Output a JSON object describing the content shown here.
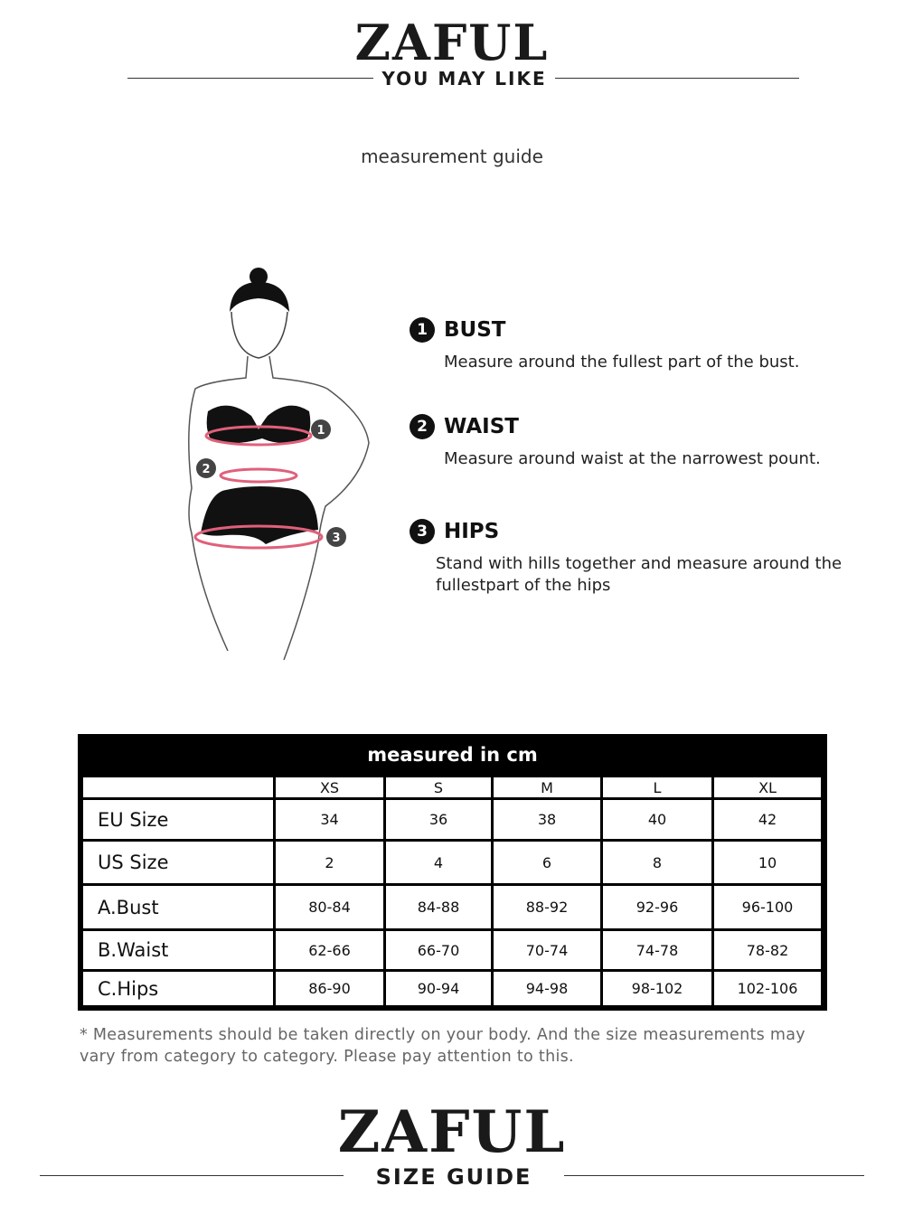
{
  "header": {
    "brand": "ZAFUL",
    "subtitle": "YOU MAY LIKE"
  },
  "guide_title": "measurement guide",
  "measurements": [
    {
      "number": "1",
      "title": "BUST",
      "description": "Measure around the fullest part of the bust."
    },
    {
      "number": "2",
      "title": "WAIST",
      "description": "Measure around waist at the narrowest pount."
    },
    {
      "number": "3",
      "title": "HIPS",
      "description": "Stand with hills together and measure around the fullestpart of the hips"
    }
  ],
  "figure_markers": [
    "1",
    "2",
    "3"
  ],
  "size_table": {
    "title": "measured in cm",
    "columns": [
      "",
      "XS",
      "S",
      "M",
      "L",
      "XL"
    ],
    "rows": [
      {
        "label": "EU  Size",
        "values": [
          "34",
          "36",
          "38",
          "40",
          "42"
        ]
      },
      {
        "label": "US  Size",
        "values": [
          "2",
          "4",
          "6",
          "8",
          "10"
        ]
      },
      {
        "label": "A.Bust",
        "values": [
          "80-84",
          "84-88",
          "88-92",
          "92-96",
          "96-100"
        ]
      },
      {
        "label": "B.Waist",
        "values": [
          "62-66",
          "66-70",
          "70-74",
          "74-78",
          "78-82"
        ]
      },
      {
        "label": "C.Hips",
        "values": [
          "86-90",
          "90-94",
          "94-98",
          "98-102",
          "102-106"
        ]
      }
    ]
  },
  "note": "* Measurements should be taken directly on your body. And the size measurements may vary from category to category. Please pay attention to this.",
  "footer": {
    "brand": "ZAFUL",
    "subtitle": "SIZE GUIDE"
  },
  "colors": {
    "measure_line": "#e0607a",
    "table_border": "#000000"
  }
}
